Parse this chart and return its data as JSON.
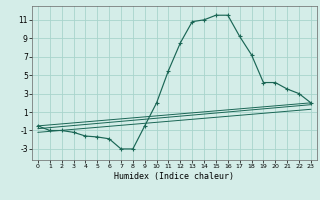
{
  "xlabel": "Humidex (Indice chaleur)",
  "background_color": "#d4ede8",
  "grid_color": "#a8d4cc",
  "line_color": "#1a6655",
  "xlim": [
    -0.5,
    23.5
  ],
  "ylim": [
    -4.2,
    12.5
  ],
  "yticks": [
    -3,
    -1,
    1,
    3,
    5,
    7,
    9,
    11
  ],
  "xticks": [
    0,
    1,
    2,
    3,
    4,
    5,
    6,
    7,
    8,
    9,
    10,
    11,
    12,
    13,
    14,
    15,
    16,
    17,
    18,
    19,
    20,
    21,
    22,
    23
  ],
  "main_x": [
    0,
    1,
    2,
    3,
    4,
    5,
    6,
    7,
    8,
    9,
    10,
    11,
    12,
    13,
    14,
    15,
    16,
    17,
    18,
    19,
    20,
    21,
    22,
    23
  ],
  "main_y": [
    -0.5,
    -1.0,
    -1.0,
    -1.2,
    -1.6,
    -1.7,
    -1.9,
    -3.0,
    -3.0,
    -0.5,
    2.0,
    5.5,
    8.5,
    10.8,
    11.0,
    11.5,
    11.5,
    9.2,
    7.2,
    4.2,
    4.2,
    3.5,
    3.0,
    2.0
  ],
  "line2_x": [
    0,
    23
  ],
  "line2_y": [
    -0.5,
    2.0
  ],
  "line3_x": [
    0,
    23
  ],
  "line3_y": [
    -0.8,
    1.8
  ],
  "line4_x": [
    0,
    23
  ],
  "line4_y": [
    -1.2,
    1.3
  ]
}
